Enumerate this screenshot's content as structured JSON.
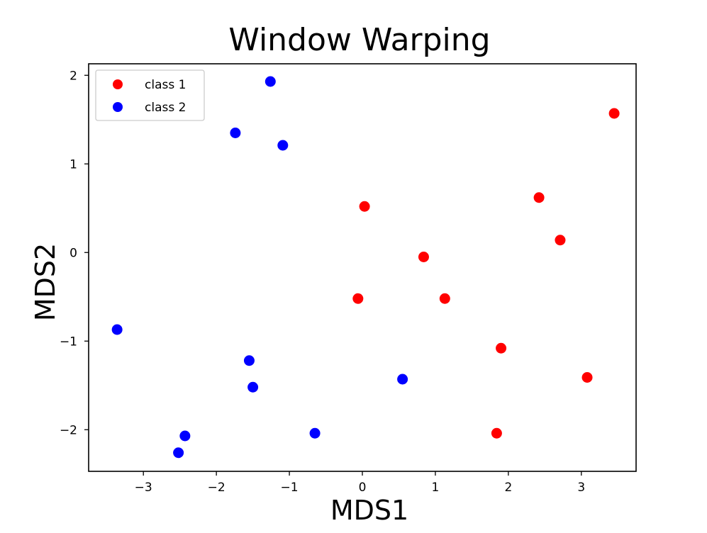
{
  "chart_data": {
    "type": "scatter",
    "title": "Window Warping",
    "xlabel": "MDS1",
    "ylabel": "MDS2",
    "xlim": [
      -3.75,
      3.75
    ],
    "ylim": [
      -2.47,
      2.13
    ],
    "xticks": [
      -3,
      -2,
      -1,
      0,
      1,
      2,
      3
    ],
    "yticks": [
      -2,
      -1,
      0,
      1,
      2
    ],
    "xtick_labels": [
      "−3",
      "−2",
      "−1",
      "0",
      "1",
      "2",
      "3"
    ],
    "ytick_labels": [
      "−2",
      "−1",
      "0",
      "1",
      "2"
    ],
    "grid": false,
    "legend": "upper-left",
    "series": [
      {
        "name": "class 1",
        "color": "#ff0000",
        "points": [
          {
            "x": 3.45,
            "y": 1.57
          },
          {
            "x": 2.42,
            "y": 0.62
          },
          {
            "x": 2.71,
            "y": 0.14
          },
          {
            "x": 0.03,
            "y": 0.52
          },
          {
            "x": 0.84,
            "y": -0.05
          },
          {
            "x": -0.06,
            "y": -0.52
          },
          {
            "x": 1.13,
            "y": -0.52
          },
          {
            "x": 1.9,
            "y": -1.08
          },
          {
            "x": 3.08,
            "y": -1.41
          },
          {
            "x": 1.84,
            "y": -2.04
          }
        ]
      },
      {
        "name": "class 2",
        "color": "#0000ff",
        "points": [
          {
            "x": -1.26,
            "y": 1.93
          },
          {
            "x": -1.74,
            "y": 1.35
          },
          {
            "x": -1.09,
            "y": 1.21
          },
          {
            "x": -3.36,
            "y": -0.87
          },
          {
            "x": -1.55,
            "y": -1.22
          },
          {
            "x": -1.5,
            "y": -1.52
          },
          {
            "x": 0.55,
            "y": -1.43
          },
          {
            "x": -0.65,
            "y": -2.04
          },
          {
            "x": -2.43,
            "y": -2.07
          },
          {
            "x": -2.52,
            "y": -2.26
          }
        ]
      }
    ]
  }
}
